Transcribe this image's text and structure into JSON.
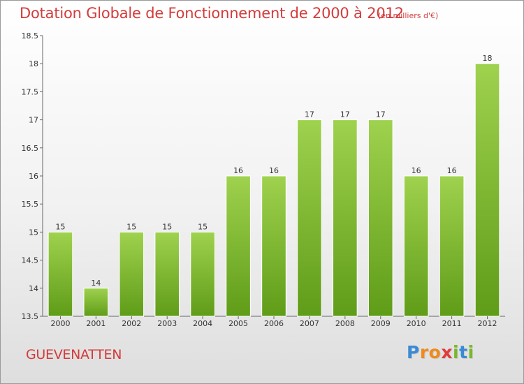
{
  "chart_data": {
    "type": "bar",
    "title": "Dotation Globale de Fonctionnement de 2000 à 2012",
    "subtitle": "(en milliers d'€)",
    "categories": [
      "2000",
      "2001",
      "2002",
      "2003",
      "2004",
      "2005",
      "2006",
      "2007",
      "2008",
      "2009",
      "2010",
      "2011",
      "2012"
    ],
    "values": [
      15,
      14,
      15,
      15,
      15,
      16,
      16,
      17,
      17,
      17,
      16,
      16,
      18
    ],
    "data_labels": [
      "15",
      "14",
      "15",
      "15",
      "15",
      "16",
      "16",
      "17",
      "17",
      "17",
      "16",
      "16",
      "18"
    ],
    "ylim": [
      13.5,
      18.5
    ],
    "yticks": [
      13.5,
      14,
      14.5,
      15,
      15.5,
      16,
      16.5,
      17,
      17.5,
      18,
      18.5
    ],
    "ytick_labels": [
      "13.5",
      "14",
      "14.5",
      "15",
      "15.5",
      "16",
      "16.5",
      "17",
      "17.5",
      "18",
      "18.5"
    ],
    "grid": false,
    "bar_color_top": "#9fd24e",
    "bar_color_bottom": "#5f9c18",
    "title_color": "#d43b3b"
  },
  "commune": "GUEVENATTEN",
  "logo": {
    "letters": [
      "P",
      "r",
      "o",
      "x",
      "i",
      "t",
      "i"
    ],
    "colors": [
      "#3a8ad6",
      "#f08a1c",
      "#f08a1c",
      "#e23b3b",
      "#79b82c",
      "#3a8ad6",
      "#79b82c"
    ]
  }
}
